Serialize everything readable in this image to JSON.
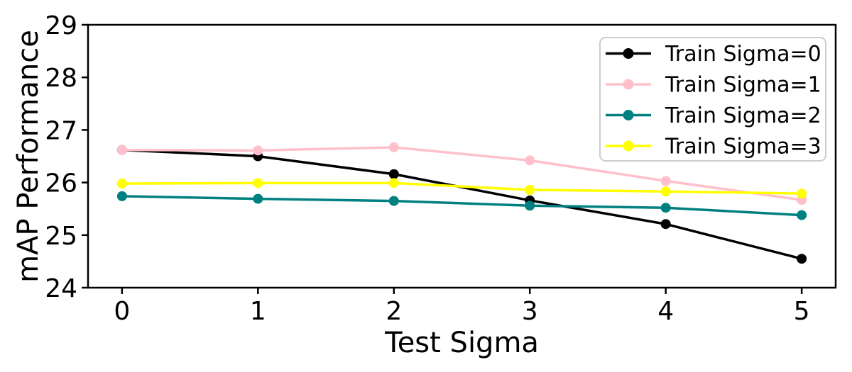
{
  "chart_data": {
    "type": "line",
    "title": "",
    "xlabel": "Test Sigma",
    "ylabel": "mAP Performance",
    "x": [
      0,
      1,
      2,
      3,
      4,
      5
    ],
    "xticks": [
      0,
      1,
      2,
      3,
      4,
      5
    ],
    "yticks": [
      24,
      25,
      26,
      27,
      28,
      29
    ],
    "xlim": [
      -0.25,
      5.25
    ],
    "ylim": [
      24,
      29
    ],
    "grid": false,
    "legend_position": "upper-right",
    "background_color": "#ffffff",
    "axis_color": "#000000",
    "legend_edge_color": "#cccccc",
    "series": [
      {
        "name": "Train Sigma=0",
        "color": "#000000",
        "values": [
          26.62,
          26.5,
          26.16,
          25.66,
          25.21,
          24.55
        ]
      },
      {
        "name": "Train Sigma=1",
        "color": "#ffc0cb",
        "values": [
          26.62,
          26.61,
          26.67,
          26.42,
          26.03,
          25.67
        ]
      },
      {
        "name": "Train Sigma=2",
        "color": "#008080",
        "values": [
          25.74,
          25.69,
          25.65,
          25.56,
          25.52,
          25.38
        ]
      },
      {
        "name": "Train Sigma=3",
        "color": "#ffff00",
        "values": [
          25.98,
          25.99,
          25.99,
          25.86,
          25.83,
          25.79
        ]
      }
    ]
  }
}
